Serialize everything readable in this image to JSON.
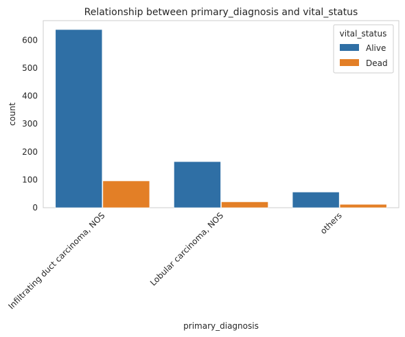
{
  "chart_data": {
    "type": "bar",
    "title": "Relationship between primary_diagnosis and vital_status",
    "xlabel": "primary_diagnosis",
    "ylabel": "count",
    "categories": [
      "Infiltrating duct carcinoma, NOS",
      "Lobular carcinoma, NOS",
      "others"
    ],
    "series": [
      {
        "name": "Alive",
        "values": [
          638,
          165,
          56
        ],
        "color": "#2f6fa5"
      },
      {
        "name": "Dead",
        "values": [
          96,
          21,
          12
        ],
        "color": "#e37f26"
      }
    ],
    "ylim": [
      0,
      670
    ],
    "yticks": [
      0,
      100,
      200,
      300,
      400,
      500,
      600
    ],
    "grid": false,
    "legend": {
      "title": "vital_status",
      "placement": "top-right"
    }
  }
}
